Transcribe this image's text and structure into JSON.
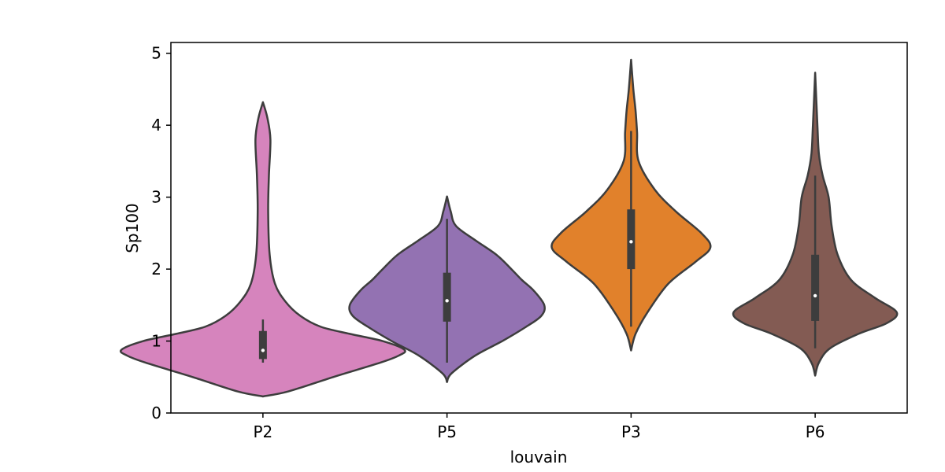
{
  "chart_data": {
    "type": "violin",
    "title": "",
    "xlabel": "louvain",
    "ylabel": "Sp100",
    "ylim": [
      0,
      5.15
    ],
    "yticks": [
      0,
      1,
      2,
      3,
      4,
      5
    ],
    "grid": false,
    "categories": [
      "P2",
      "P5",
      "P3",
      "P6"
    ],
    "colors": {
      "P2": "#d684bd",
      "P5": "#9372b2",
      "P3": "#e1812b",
      "P6": "#835b53",
      "outline": "#3d3d3d",
      "median": "#ffffff"
    },
    "series": [
      {
        "category": "P2",
        "range": [
          0.23,
          4.32
        ],
        "box": {
          "q1": 0.75,
          "median": 0.87,
          "q3": 1.14,
          "whisker_low": 0.7,
          "whisker_high": 1.3
        },
        "density": [
          [
            0.23,
            0.0
          ],
          [
            0.3,
            0.34
          ],
          [
            0.5,
            0.94
          ],
          [
            0.7,
            1.57
          ],
          [
            0.8,
            1.82
          ],
          [
            0.88,
            1.89
          ],
          [
            1.0,
            1.6
          ],
          [
            1.1,
            1.16
          ],
          [
            1.2,
            0.77
          ],
          [
            1.35,
            0.5
          ],
          [
            1.55,
            0.3
          ],
          [
            1.8,
            0.16
          ],
          [
            2.2,
            0.09
          ],
          [
            2.8,
            0.07
          ],
          [
            3.3,
            0.08
          ],
          [
            3.8,
            0.1
          ],
          [
            4.1,
            0.06
          ],
          [
            4.32,
            0.0
          ]
        ]
      },
      {
        "category": "P5",
        "range": [
          0.43,
          3.01
        ],
        "box": {
          "q1": 1.27,
          "median": 1.56,
          "q3": 1.95,
          "whisker_low": 0.7,
          "whisker_high": 2.7
        },
        "density": [
          [
            0.43,
            0.0
          ],
          [
            0.55,
            0.06
          ],
          [
            0.8,
            0.38
          ],
          [
            1.0,
            0.74
          ],
          [
            1.2,
            1.06
          ],
          [
            1.35,
            1.26
          ],
          [
            1.5,
            1.3
          ],
          [
            1.7,
            1.16
          ],
          [
            1.85,
            1.0
          ],
          [
            2.0,
            0.86
          ],
          [
            2.2,
            0.66
          ],
          [
            2.4,
            0.38
          ],
          [
            2.6,
            0.12
          ],
          [
            2.8,
            0.05
          ],
          [
            3.01,
            0.0
          ]
        ]
      },
      {
        "category": "P3",
        "range": [
          0.87,
          4.91
        ],
        "box": {
          "q1": 2.0,
          "median": 2.38,
          "q3": 2.83,
          "whisker_low": 1.2,
          "whisker_high": 3.92
        },
        "density": [
          [
            0.87,
            0.0
          ],
          [
            1.1,
            0.06
          ],
          [
            1.4,
            0.22
          ],
          [
            1.8,
            0.5
          ],
          [
            2.1,
            0.86
          ],
          [
            2.3,
            1.06
          ],
          [
            2.5,
            0.94
          ],
          [
            2.8,
            0.6
          ],
          [
            3.1,
            0.32
          ],
          [
            3.5,
            0.1
          ],
          [
            3.9,
            0.08
          ],
          [
            4.2,
            0.06
          ],
          [
            4.5,
            0.03
          ],
          [
            4.91,
            0.0
          ]
        ]
      },
      {
        "category": "P6",
        "range": [
          0.52,
          4.73
        ],
        "box": {
          "q1": 1.28,
          "median": 1.63,
          "q3": 2.2,
          "whisker_low": 0.9,
          "whisker_high": 3.3
        },
        "density": [
          [
            0.52,
            0.0
          ],
          [
            0.7,
            0.05
          ],
          [
            0.9,
            0.2
          ],
          [
            1.1,
            0.58
          ],
          [
            1.25,
            0.96
          ],
          [
            1.4,
            1.09
          ],
          [
            1.6,
            0.8
          ],
          [
            1.85,
            0.48
          ],
          [
            2.2,
            0.3
          ],
          [
            2.6,
            0.22
          ],
          [
            3.0,
            0.18
          ],
          [
            3.3,
            0.1
          ],
          [
            3.6,
            0.05
          ],
          [
            4.0,
            0.03
          ],
          [
            4.73,
            0.0
          ]
        ]
      }
    ]
  }
}
